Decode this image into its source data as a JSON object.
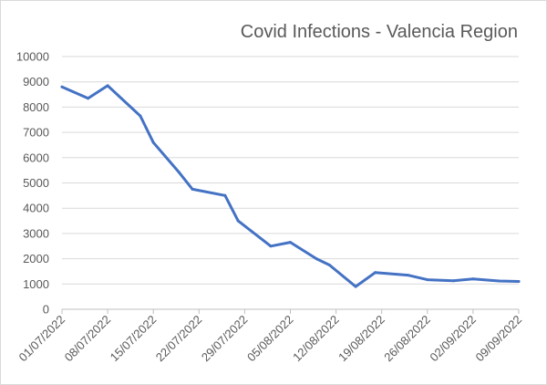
{
  "chart_data": {
    "type": "line",
    "title": "Covid Infections - Valencia Region",
    "xlabel": "",
    "ylabel": "",
    "ylim": [
      0,
      10000
    ],
    "y_ticks": [
      0,
      1000,
      2000,
      3000,
      4000,
      5000,
      6000,
      7000,
      8000,
      9000,
      10000
    ],
    "x_tick_labels": [
      "01/07/2022",
      "08/07/2022",
      "15/07/2022",
      "22/07/2022",
      "29/07/2022",
      "05/08/2022",
      "12/08/2022",
      "19/08/2022",
      "26/08/2022",
      "02/09/2022",
      "09/09/2022"
    ],
    "x_range": [
      "01/07/2022",
      "09/09/2022"
    ],
    "grid": "horizontal",
    "legend": "none",
    "series": [
      {
        "color": "#4472c4",
        "x": [
          "01/07/2022",
          "05/07/2022",
          "08/07/2022",
          "13/07/2022",
          "15/07/2022",
          "19/07/2022",
          "21/07/2022",
          "26/07/2022",
          "28/07/2022",
          "02/08/2022",
          "05/08/2022",
          "09/08/2022",
          "11/08/2022",
          "15/08/2022",
          "18/08/2022",
          "23/08/2022",
          "26/08/2022",
          "30/08/2022",
          "02/09/2022",
          "06/09/2022",
          "09/09/2022"
        ],
        "values": [
          8800,
          8350,
          8850,
          7650,
          6600,
          5400,
          4750,
          4500,
          3500,
          2500,
          2650,
          2000,
          1750,
          900,
          1450,
          1350,
          1170,
          1130,
          1200,
          1120,
          1100
        ]
      }
    ]
  }
}
